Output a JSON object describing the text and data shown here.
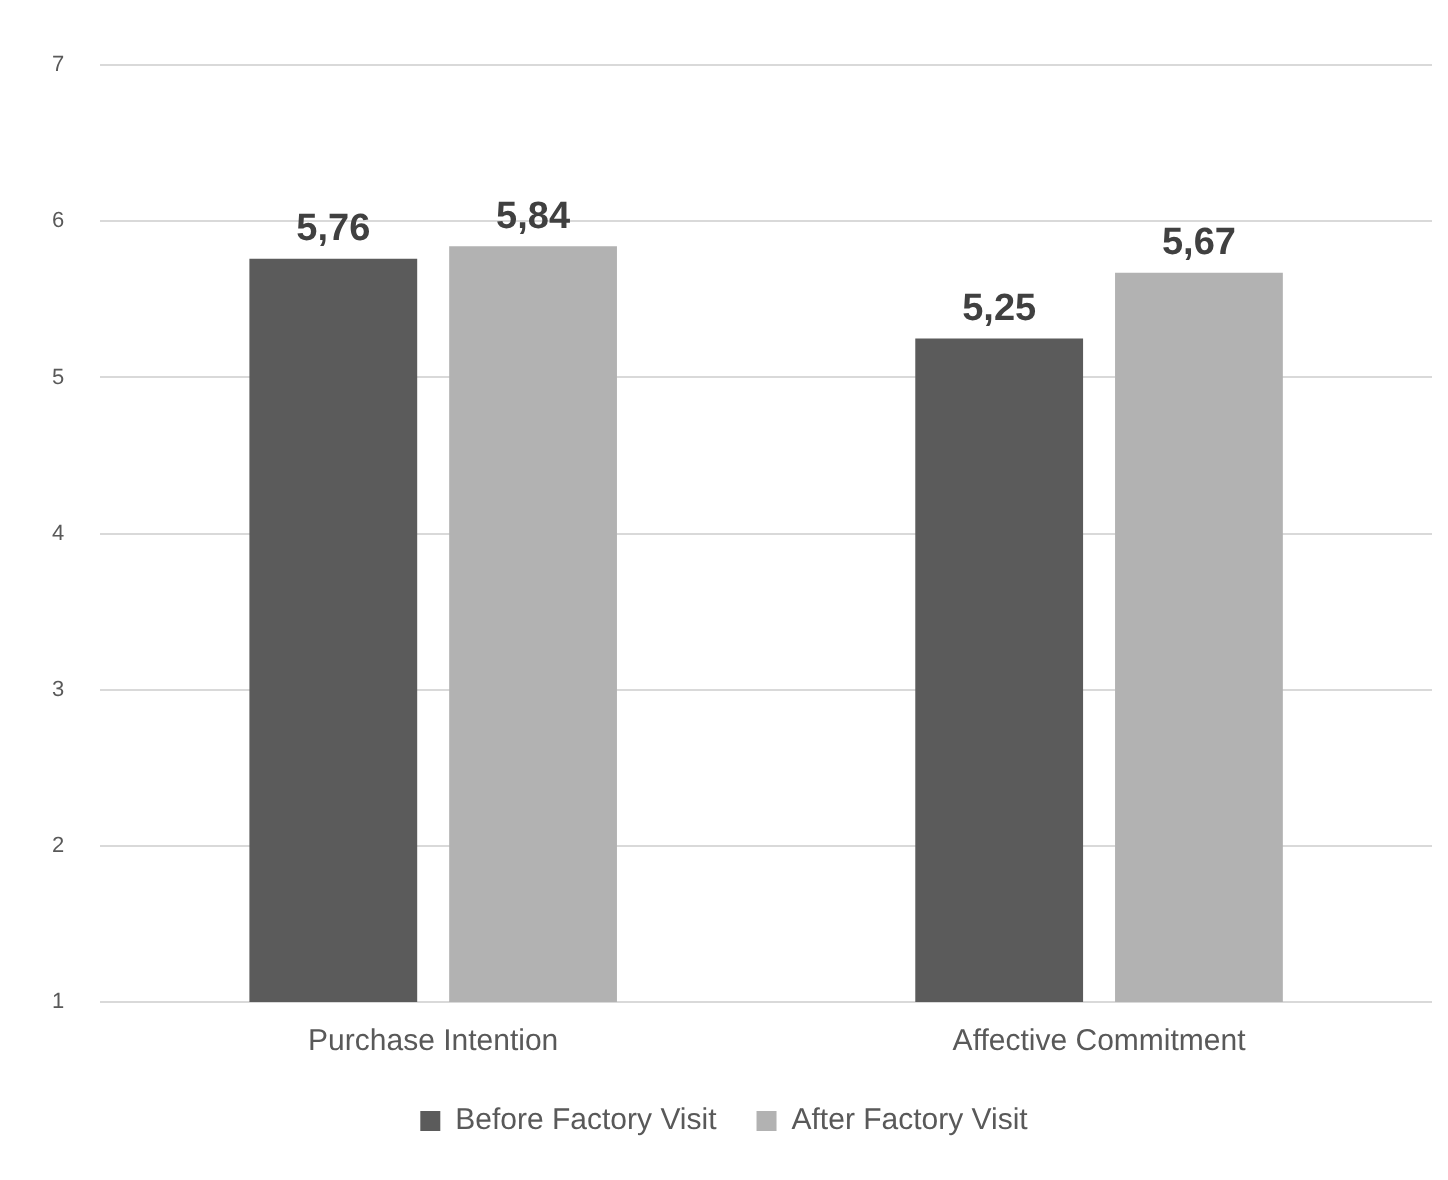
{
  "chart_data": {
    "type": "bar",
    "categories": [
      "Purchase Intention",
      "Affective Commitment"
    ],
    "series": [
      {
        "name": "Before Factory Visit",
        "color": "#5b5b5b",
        "values": [
          5.76,
          5.25
        ],
        "value_labels": [
          "5,76",
          "5,25"
        ]
      },
      {
        "name": "After Factory Visit",
        "color": "#b2b2b2",
        "values": [
          5.84,
          5.67
        ],
        "value_labels": [
          "5,84",
          "5,67"
        ]
      }
    ],
    "ylim": [
      1,
      7
    ],
    "yticks": [
      1,
      2,
      3,
      4,
      5,
      6,
      7
    ],
    "grid": "y",
    "legend": "bottom"
  }
}
